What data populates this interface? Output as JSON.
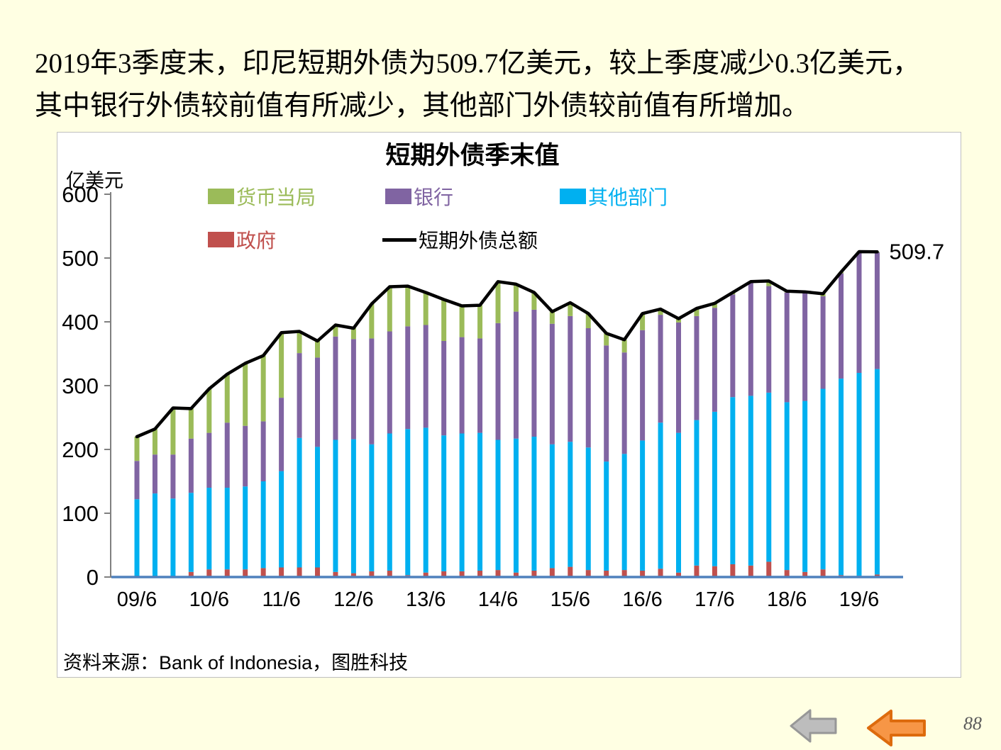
{
  "slide": {
    "title_line1": "2019年3季度末，印尼短期外债为509.7亿美元，较上季度减少0.3亿美元，",
    "title_line2": "其中银行外债较前值有所减少，其他部门外债较前值有所增加。"
  },
  "chart": {
    "title": "短期外债季末值",
    "unit_label": "亿美元",
    "source": "资料来源：Bank of Indonesia，图胜科技",
    "legend": [
      {
        "label": "货币当局",
        "color": "#9BBB59",
        "type": "box"
      },
      {
        "label": "银行",
        "color": "#8064A2",
        "type": "box"
      },
      {
        "label": "其他部门",
        "color": "#00B0F0",
        "type": "box"
      },
      {
        "label": "政府",
        "color": "#C0504D",
        "type": "box"
      },
      {
        "label": "短期外债总额",
        "color": "#000000",
        "type": "line"
      }
    ]
  },
  "chart_data": {
    "type": "bar",
    "subtype": "stacked-bars-with-total-line",
    "title": "短期外债季末值",
    "ylabel": "亿美元",
    "ylim": [
      0,
      600
    ],
    "yticks": [
      0,
      100,
      200,
      300,
      400,
      500,
      600
    ],
    "grid": false,
    "legend_position": "top",
    "x_tick_labels": [
      "09/6",
      "10/6",
      "11/6",
      "12/6",
      "13/6",
      "14/6",
      "15/6",
      "16/6",
      "17/6",
      "18/6",
      "19/6"
    ],
    "categories": [
      "09/6",
      "09/9",
      "09/12",
      "10/3",
      "10/6",
      "10/9",
      "10/12",
      "11/3",
      "11/6",
      "11/9",
      "11/12",
      "12/3",
      "12/6",
      "12/9",
      "12/12",
      "13/3",
      "13/6",
      "13/9",
      "13/12",
      "14/3",
      "14/6",
      "14/9",
      "14/12",
      "15/3",
      "15/6",
      "15/9",
      "15/12",
      "16/3",
      "16/6",
      "16/9",
      "16/12",
      "17/3",
      "17/6",
      "17/9",
      "17/12",
      "18/3",
      "18/6",
      "18/9",
      "18/12",
      "19/3",
      "19/6",
      "19/9"
    ],
    "series": [
      {
        "name": "政府",
        "key": "government",
        "color": "#C0504D",
        "values": [
          0,
          0,
          0,
          8,
          12,
          12,
          12,
          14,
          15,
          15,
          15,
          8,
          6,
          9,
          10,
          3,
          7,
          9,
          9,
          10,
          11,
          7,
          10,
          14,
          16,
          11,
          10,
          11,
          10,
          13,
          7,
          18,
          17,
          20,
          18,
          24,
          11,
          8,
          12,
          3,
          2,
          4
        ]
      },
      {
        "name": "其他部门",
        "key": "other-sectors",
        "color": "#00B0F0",
        "values": [
          122,
          131,
          123,
          124,
          128,
          128,
          130,
          136,
          151,
          203,
          189,
          207,
          210,
          199,
          215,
          229,
          227,
          213,
          216,
          216,
          204,
          210,
          210,
          194,
          196,
          192,
          171,
          182,
          204,
          229,
          219,
          228,
          242,
          262,
          266,
          265,
          263,
          268,
          283,
          308,
          318,
          322
        ]
      },
      {
        "name": "银行",
        "key": "banks",
        "color": "#8064A2",
        "values": [
          60,
          61,
          69,
          85,
          86,
          102,
          95,
          94,
          115,
          133,
          140,
          162,
          157,
          166,
          160,
          161,
          161,
          148,
          151,
          148,
          183,
          199,
          199,
          189,
          197,
          187,
          182,
          159,
          173,
          169,
          173,
          163,
          163,
          161,
          177,
          167,
          172,
          170,
          145,
          165,
          189,
          183
        ]
      },
      {
        "name": "货币当局",
        "key": "monetary-authority",
        "color": "#9BBB59",
        "values": [
          38,
          40,
          73,
          47,
          69,
          76,
          98,
          103,
          102,
          34,
          26,
          18,
          17,
          54,
          70,
          63,
          51,
          65,
          49,
          52,
          65,
          43,
          27,
          19,
          21,
          23,
          19,
          20,
          26,
          9,
          6,
          12,
          7,
          3,
          2,
          8,
          2,
          1,
          4,
          2,
          1,
          0.7
        ]
      },
      {
        "name": "短期外债总额",
        "key": "total",
        "type": "line",
        "color": "#000000",
        "values": [
          220,
          232,
          265,
          264,
          295,
          318,
          335,
          347,
          383,
          385,
          370,
          395,
          390,
          428,
          455,
          456,
          446,
          435,
          425,
          426,
          463,
          459,
          446,
          416,
          430,
          413,
          382,
          372,
          413,
          420,
          405,
          421,
          429,
          446,
          463,
          464,
          448,
          447,
          444,
          478,
          510,
          509.7
        ]
      }
    ],
    "annotation": {
      "text": "509.7",
      "at_index": 41
    }
  },
  "footer": {
    "page_number": "88"
  }
}
